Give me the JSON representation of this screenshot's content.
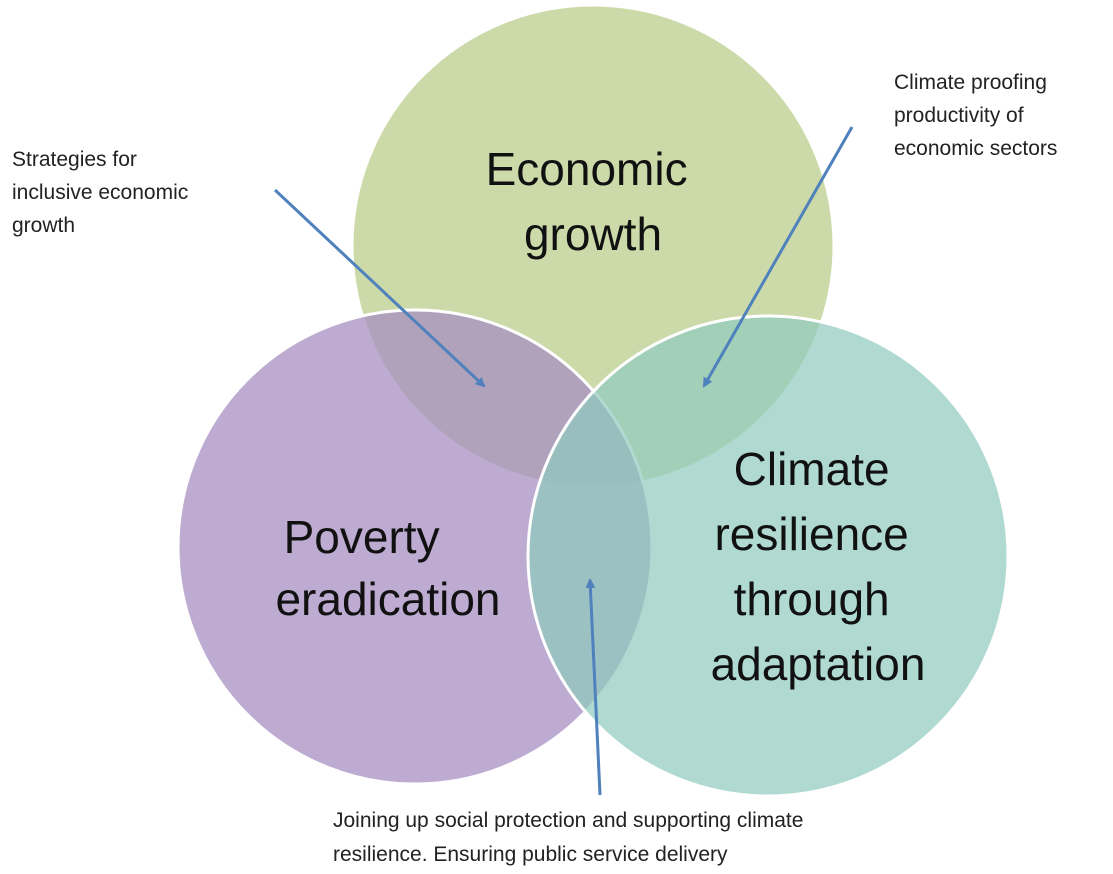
{
  "circles": [
    {
      "label": [
        "Economic",
        "growth"
      ]
    },
    {
      "label": [
        "Poverty",
        "eradication"
      ]
    },
    {
      "label": [
        "Climate",
        "resilience",
        "through",
        "adaptation"
      ]
    }
  ],
  "annotations": [
    {
      "lines": [
        "Strategies for",
        "inclusive economic",
        "growth"
      ]
    },
    {
      "lines": [
        "Climate proofing",
        "productivity of",
        "economic sectors"
      ]
    },
    {
      "lines": [
        "Joining up social protection and supporting climate",
        "resilience. Ensuring public service delivery"
      ]
    }
  ]
}
